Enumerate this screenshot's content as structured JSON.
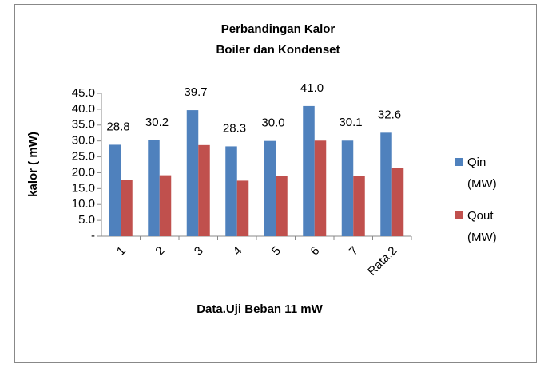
{
  "chart_data": {
    "type": "bar",
    "title": [
      "Perbandingan Kalor",
      "Boiler dan Kondenset"
    ],
    "x_label": "Data.Uji Beban 11 mW",
    "y_label": "kalor ( mW)",
    "categories": [
      "1",
      "2",
      "3",
      "4",
      "5",
      "6",
      "7",
      "Rata.2"
    ],
    "series": [
      {
        "name": "Qin (MW)",
        "color": "#4f81bd",
        "values": [
          28.8,
          30.2,
          39.7,
          28.3,
          30.0,
          41.0,
          30.1,
          32.6
        ],
        "value_labels": [
          "28.8",
          "30.2",
          "39.7",
          "28.3",
          "30.0",
          "41.0",
          "30.1",
          "32.6"
        ]
      },
      {
        "name": "Qout (MW)",
        "color": "#c0504d",
        "values": [
          17.8,
          19.2,
          28.7,
          17.5,
          19.1,
          30.1,
          19.0,
          21.6
        ]
      }
    ],
    "ylim": [
      0,
      45
    ],
    "yticks": [
      {
        "value": 0,
        "label": "-"
      },
      {
        "value": 5,
        "label": "5.0"
      },
      {
        "value": 10,
        "label": "10.0"
      },
      {
        "value": 15,
        "label": "15.0"
      },
      {
        "value": 20,
        "label": "20.0"
      },
      {
        "value": 25,
        "label": "25.0"
      },
      {
        "value": 30,
        "label": "30.0"
      },
      {
        "value": 35,
        "label": "35.0"
      },
      {
        "value": 40,
        "label": "40.0"
      },
      {
        "value": 45,
        "label": "45.0"
      }
    ],
    "grid": false,
    "legend": "right"
  }
}
